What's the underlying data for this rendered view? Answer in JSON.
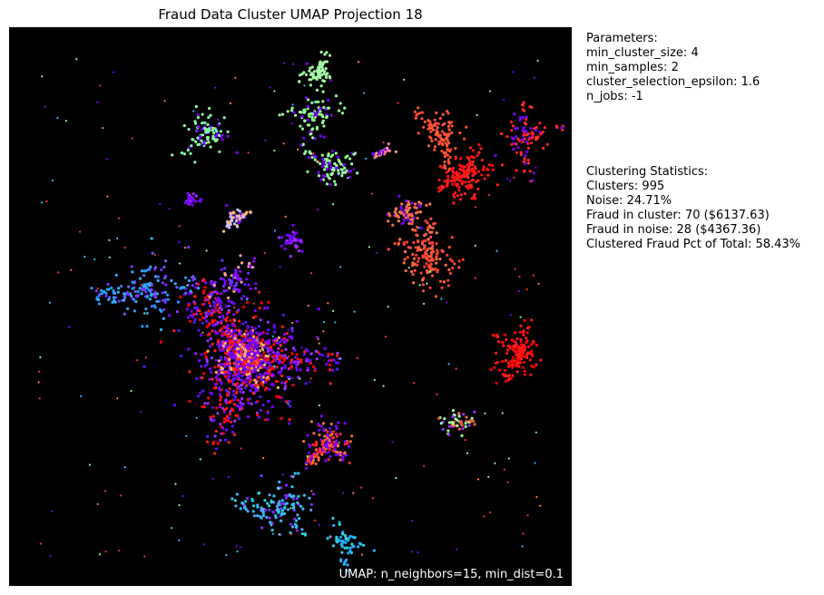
{
  "chart_data": {
    "type": "scatter",
    "title": "Fraud Data Cluster UMAP Projection 18",
    "xlabel": "",
    "ylabel": "",
    "background": "#000000",
    "grid": false,
    "colormap": "rainbow",
    "annotation": "UMAP: n_neighbors=15, min_dist=0.1",
    "clusters": [
      {
        "cx": 0.42,
        "cy": 0.6,
        "spread": 0.08,
        "count": 900,
        "colors": [
          "#ff1a1a",
          "#ff0000",
          "#7a00ff",
          "#9a30ff",
          "#5a14ff"
        ]
      },
      {
        "cx": 0.42,
        "cy": 0.58,
        "spread": 0.04,
        "count": 350,
        "colors": [
          "#8a00ff",
          "#6a00ff",
          "#ff3030",
          "#ffb070"
        ]
      },
      {
        "cx": 0.57,
        "cy": 0.74,
        "spread": 0.03,
        "count": 160,
        "colors": [
          "#ff2a2a",
          "#ff6a40",
          "#7a00ff"
        ]
      },
      {
        "cx": 0.75,
        "cy": 0.42,
        "spread": 0.04,
        "count": 160,
        "colors": [
          "#ff5040",
          "#ff4030",
          "#ff7040"
        ]
      },
      {
        "cx": 0.81,
        "cy": 0.26,
        "spread": 0.03,
        "count": 160,
        "colors": [
          "#ff1010",
          "#ff2020"
        ]
      },
      {
        "cx": 0.91,
        "cy": 0.58,
        "spread": 0.03,
        "count": 160,
        "colors": [
          "#ff0000",
          "#ff1a1a"
        ]
      },
      {
        "cx": 0.92,
        "cy": 0.2,
        "spread": 0.04,
        "count": 100,
        "colors": [
          "#ff2020",
          "#ff3030",
          "#7a00ff"
        ]
      },
      {
        "cx": 0.77,
        "cy": 0.19,
        "spread": 0.03,
        "count": 110,
        "colors": [
          "#ff5a3a",
          "#ff4a30"
        ]
      },
      {
        "cx": 0.71,
        "cy": 0.33,
        "spread": 0.02,
        "count": 70,
        "colors": [
          "#ff6a40",
          "#7a00ff",
          "#ff8050"
        ]
      },
      {
        "cx": 0.8,
        "cy": 0.71,
        "spread": 0.02,
        "count": 50,
        "colors": [
          "#ff6040",
          "#9a30ff",
          "#9affa0"
        ]
      },
      {
        "cx": 0.54,
        "cy": 0.15,
        "spread": 0.03,
        "count": 90,
        "colors": [
          "#90ff90",
          "#7a00ff",
          "#a0ffa0"
        ]
      },
      {
        "cx": 0.55,
        "cy": 0.08,
        "spread": 0.02,
        "count": 70,
        "colors": [
          "#a0ffa0",
          "#b0ffb0"
        ]
      },
      {
        "cx": 0.57,
        "cy": 0.25,
        "spread": 0.025,
        "count": 100,
        "colors": [
          "#90ff90",
          "#7a00ff",
          "#a0ffa0"
        ]
      },
      {
        "cx": 0.35,
        "cy": 0.19,
        "spread": 0.03,
        "count": 100,
        "colors": [
          "#80ffb0",
          "#90ffa0",
          "#7a00ff"
        ]
      },
      {
        "cx": 0.67,
        "cy": 0.22,
        "spread": 0.012,
        "count": 30,
        "colors": [
          "#ff8080",
          "#ffa0a0",
          "#7a00ff"
        ]
      },
      {
        "cx": 0.4,
        "cy": 0.34,
        "spread": 0.015,
        "count": 60,
        "colors": [
          "#d0c0ff",
          "#ffc080",
          "#7a00ff"
        ]
      },
      {
        "cx": 0.32,
        "cy": 0.31,
        "spread": 0.01,
        "count": 40,
        "colors": [
          "#7a00ff",
          "#9a30ff"
        ]
      },
      {
        "cx": 0.5,
        "cy": 0.38,
        "spread": 0.015,
        "count": 50,
        "colors": [
          "#7a00ff",
          "#9a30ff"
        ]
      },
      {
        "cx": 0.25,
        "cy": 0.47,
        "spread": 0.05,
        "count": 160,
        "colors": [
          "#30b0ff",
          "#6060ff",
          "#7a30ff",
          "#20a0ff"
        ]
      },
      {
        "cx": 0.4,
        "cy": 0.46,
        "spread": 0.03,
        "count": 80,
        "colors": [
          "#6a30ff",
          "#8a00ff",
          "#ffa0a0"
        ]
      },
      {
        "cx": 0.48,
        "cy": 0.86,
        "spread": 0.04,
        "count": 130,
        "colors": [
          "#30c0ff",
          "#20d0e0",
          "#7a30ff",
          "#60a0ff"
        ]
      },
      {
        "cx": 0.6,
        "cy": 0.92,
        "spread": 0.025,
        "count": 60,
        "colors": [
          "#30d0e0",
          "#20b0ff"
        ]
      }
    ],
    "noise": {
      "count": 240,
      "colors": [
        "#7a00ff",
        "#ff3030",
        "#30c0ff",
        "#90ff90",
        "#ff8050"
      ]
    }
  },
  "params_panel": {
    "title": "Parameters:",
    "lines": [
      "min_cluster_size: 4",
      "min_samples: 2",
      "cluster_selection_epsilon: 1.6",
      "n_jobs: -1"
    ]
  },
  "stats_panel": {
    "title": "Clustering Statistics:",
    "lines": [
      "Clusters: 995",
      "Noise: 24.71%",
      "Fraud in cluster: 70 ($6137.63)",
      "Fraud in noise: 28 ($4367.36)",
      "Clustered Fraud Pct of Total: 58.43%"
    ]
  }
}
